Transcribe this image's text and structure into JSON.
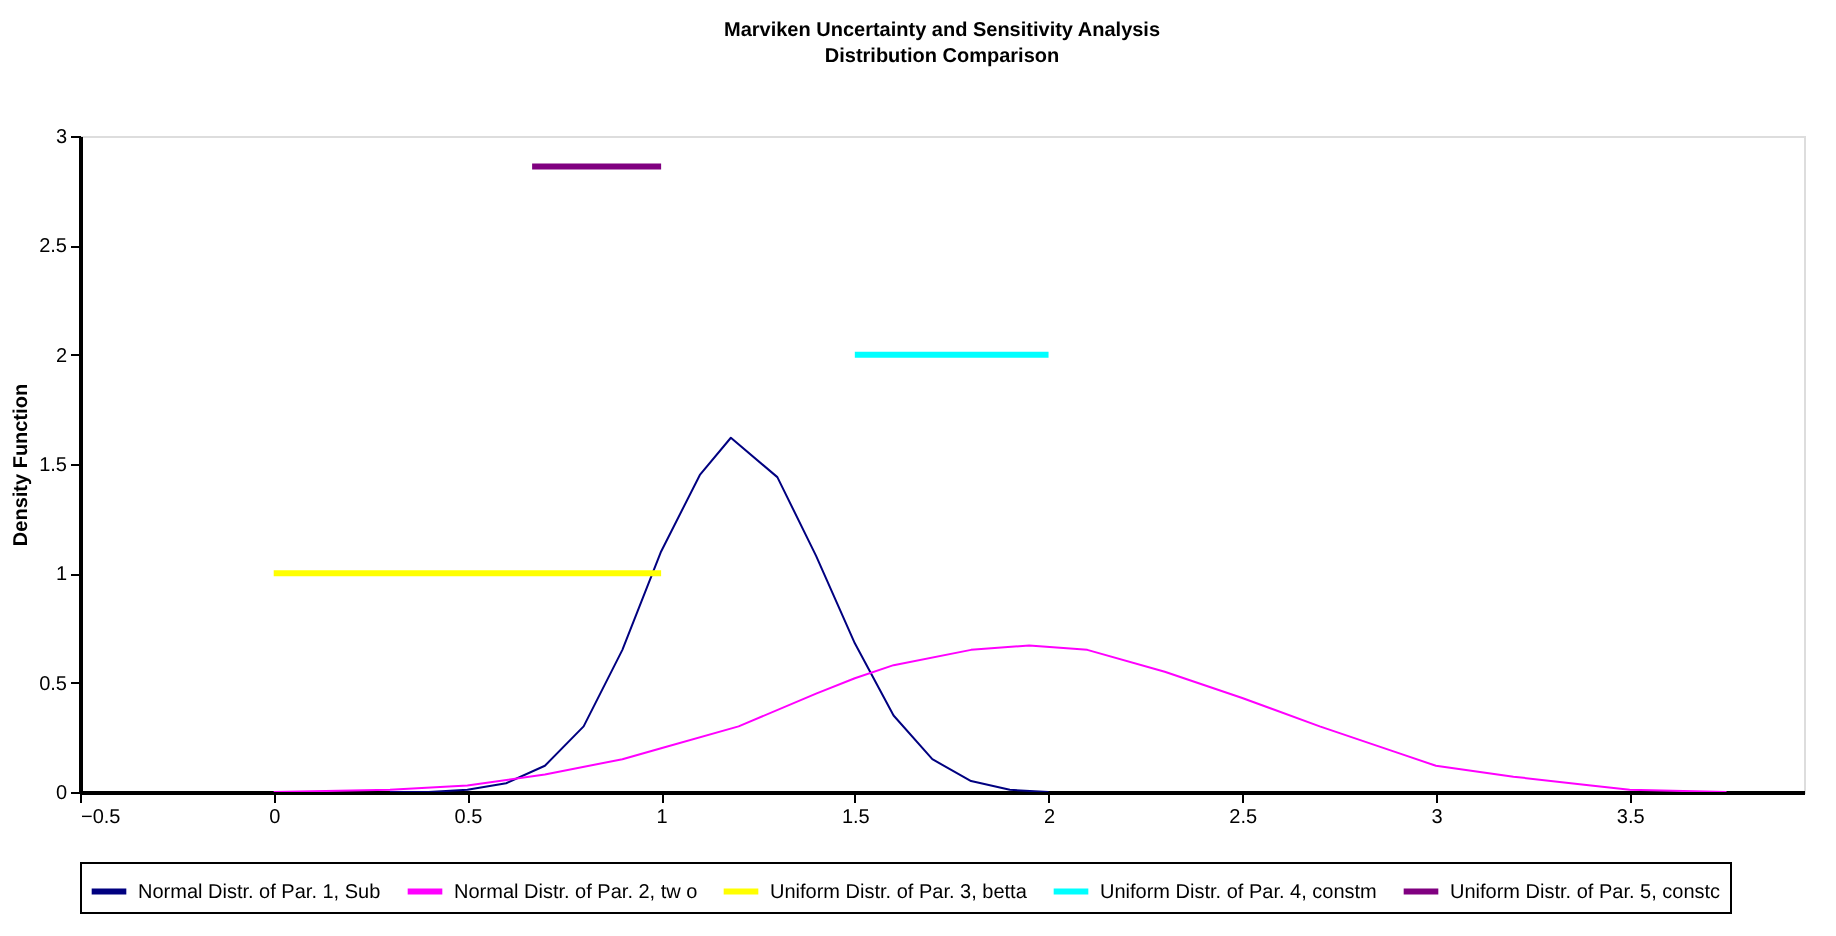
{
  "chart_data": {
    "type": "line",
    "title": "Marviken Uncertainty and Sensitivity Analysis",
    "subtitle": "Distribution Comparison",
    "ylabel": "Density Function",
    "xlim": [
      -0.5,
      3.95
    ],
    "xticks": [
      -0.5,
      0,
      0.5,
      1,
      1.5,
      2,
      2.5,
      3,
      3.5
    ],
    "ylim": [
      0,
      3
    ],
    "yticks": [
      0,
      0.5,
      1,
      1.5,
      2,
      2.5,
      3
    ],
    "grid": false,
    "legend": "bottom",
    "marker": "none",
    "line_style": "solid",
    "series": [
      {
        "name": "Normal Distr. of Par. 1, Sub",
        "color": "#000080",
        "x": [
          0.3,
          0.4,
          0.5,
          0.6,
          0.7,
          0.8,
          0.9,
          1.0,
          1.1,
          1.18,
          1.3,
          1.4,
          1.5,
          1.6,
          1.7,
          1.8,
          1.9,
          2.0
        ],
        "values": [
          0,
          0,
          0.01,
          0.04,
          0.12,
          0.3,
          0.65,
          1.1,
          1.45,
          1.62,
          1.44,
          1.08,
          0.68,
          0.35,
          0.15,
          0.05,
          0.01,
          0
        ]
      },
      {
        "name": "Normal Distr. of Par. 2, tw o",
        "color": "#ff00ff",
        "x": [
          0,
          0.3,
          0.5,
          0.7,
          0.9,
          1.0,
          1.2,
          1.4,
          1.5,
          1.6,
          1.8,
          1.95,
          2.1,
          2.3,
          2.5,
          2.7,
          2.9,
          3.0,
          3.2,
          3.4,
          3.5,
          3.75
        ],
        "values": [
          0,
          0.01,
          0.03,
          0.08,
          0.15,
          0.2,
          0.3,
          0.45,
          0.52,
          0.58,
          0.65,
          0.67,
          0.65,
          0.55,
          0.43,
          0.3,
          0.18,
          0.12,
          0.07,
          0.03,
          0.01,
          0
        ]
      },
      {
        "name": "Uniform Distr. of Par. 3, betta",
        "color": "#ffff00",
        "x": [
          0,
          1
        ],
        "values": [
          1,
          1
        ]
      },
      {
        "name": "Uniform Distr. of Par. 4, constm",
        "color": "#00ffff",
        "x": [
          1.5,
          2
        ],
        "values": [
          2,
          2
        ]
      },
      {
        "name": "Uniform Distr. of Par. 5, constc",
        "color": "#800080",
        "x": [
          0.667,
          1
        ],
        "values": [
          2.86,
          2.86
        ]
      }
    ]
  }
}
